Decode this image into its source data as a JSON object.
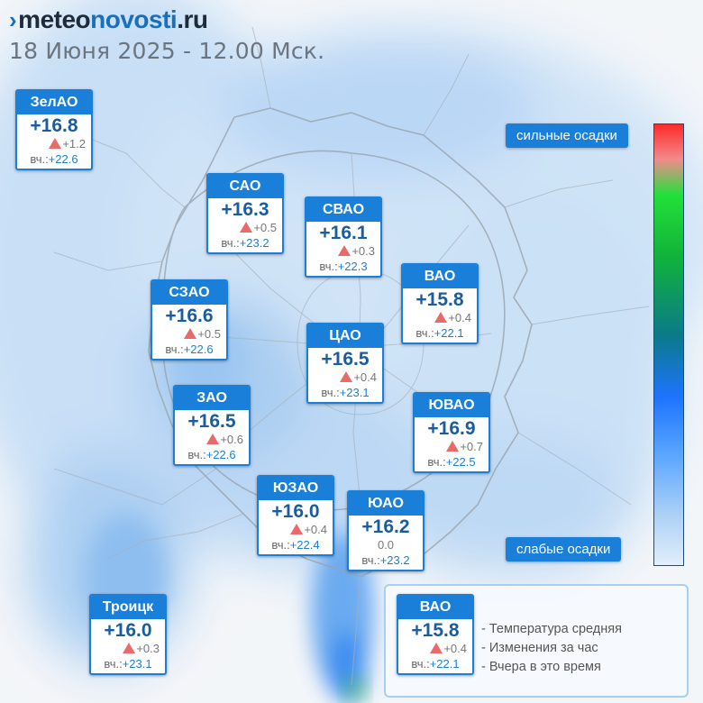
{
  "header": {
    "logo_mark": "›",
    "logo_part1": "meteo",
    "logo_part2": "novosti",
    "logo_part3": ".ru",
    "date": "18 Июня 2025 - 12.00 Мск."
  },
  "colors": {
    "accent": "#1a7fd8",
    "temp_text": "#1a5d9e",
    "rise_arrow": "#e96a6a",
    "road_lines": "#9aa4ae"
  },
  "districts": {
    "zelao": {
      "name": "ЗелАО",
      "temp": "+16.8",
      "change": "+1.2",
      "yesterday": "+22.6"
    },
    "sao": {
      "name": "САО",
      "temp": "+16.3",
      "change": "+0.5",
      "yesterday": "+23.2"
    },
    "svao": {
      "name": "СВАО",
      "temp": "+16.1",
      "change": "+0.3",
      "yesterday": "+22.3"
    },
    "vao": {
      "name": "ВАО",
      "temp": "+15.8",
      "change": "+0.4",
      "yesterday": "+22.1"
    },
    "szao": {
      "name": "СЗАО",
      "temp": "+16.6",
      "change": "+0.5",
      "yesterday": "+22.6"
    },
    "cao": {
      "name": "ЦАО",
      "temp": "+16.5",
      "change": "+0.4",
      "yesterday": "+23.1"
    },
    "zao": {
      "name": "ЗАО",
      "temp": "+16.5",
      "change": "+0.6",
      "yesterday": "+22.6"
    },
    "yuvao": {
      "name": "ЮВАО",
      "temp": "+16.9",
      "change": "+0.7",
      "yesterday": "+22.5"
    },
    "yuzao": {
      "name": "ЮЗАО",
      "temp": "+16.0",
      "change": "+0.4",
      "yesterday": "+22.4"
    },
    "yuao": {
      "name": "ЮАО",
      "temp": "+16.2",
      "change": "0.0",
      "yesterday": "+23.2"
    },
    "troick": {
      "name": "Троицк",
      "temp": "+16.0",
      "change": "+0.3",
      "yesterday": "+23.1"
    }
  },
  "yesterday_label": "вч.:",
  "precip_legend": {
    "strong": "сильные осадки",
    "weak": "слабые осадки"
  },
  "key": {
    "sample": {
      "name": "ВАО",
      "temp": "+15.8",
      "change": "+0.4",
      "yesterday": "+22.1"
    },
    "desc_temp": "- Температура средняя",
    "desc_change": "- Изменения за час",
    "desc_yesterday": "- Вчера в это время"
  }
}
